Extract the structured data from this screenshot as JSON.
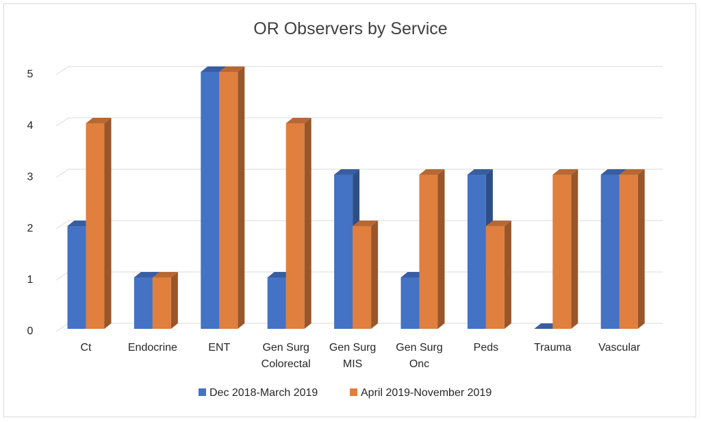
{
  "chart_data": {
    "type": "bar",
    "title": "OR Observers by Service",
    "xlabel": "",
    "ylabel": "",
    "categories": [
      [
        "Ct"
      ],
      [
        "Endocrine"
      ],
      [
        "ENT"
      ],
      [
        "Gen Surg",
        "Colorectal"
      ],
      [
        "Gen Surg",
        "MIS"
      ],
      [
        "Gen Surg",
        "Onc"
      ],
      [
        "Peds"
      ],
      [
        "Trauma"
      ],
      [
        "Vascular"
      ]
    ],
    "series": [
      {
        "name": "Dec 2018-March 2019",
        "values": [
          2,
          1,
          5,
          1,
          3,
          1,
          3,
          0,
          3
        ],
        "color": "#4472c4"
      },
      {
        "name": "April 2019-November 2019",
        "values": [
          4,
          1,
          5,
          4,
          2,
          3,
          2,
          3,
          3
        ],
        "color": "#e07f3e"
      }
    ],
    "ylim": [
      0,
      5
    ],
    "yticks": [
      "0",
      "1",
      "2",
      "3",
      "4",
      "5"
    ],
    "grid": true,
    "legend": "bottom",
    "style": "3d-clustered-column"
  }
}
